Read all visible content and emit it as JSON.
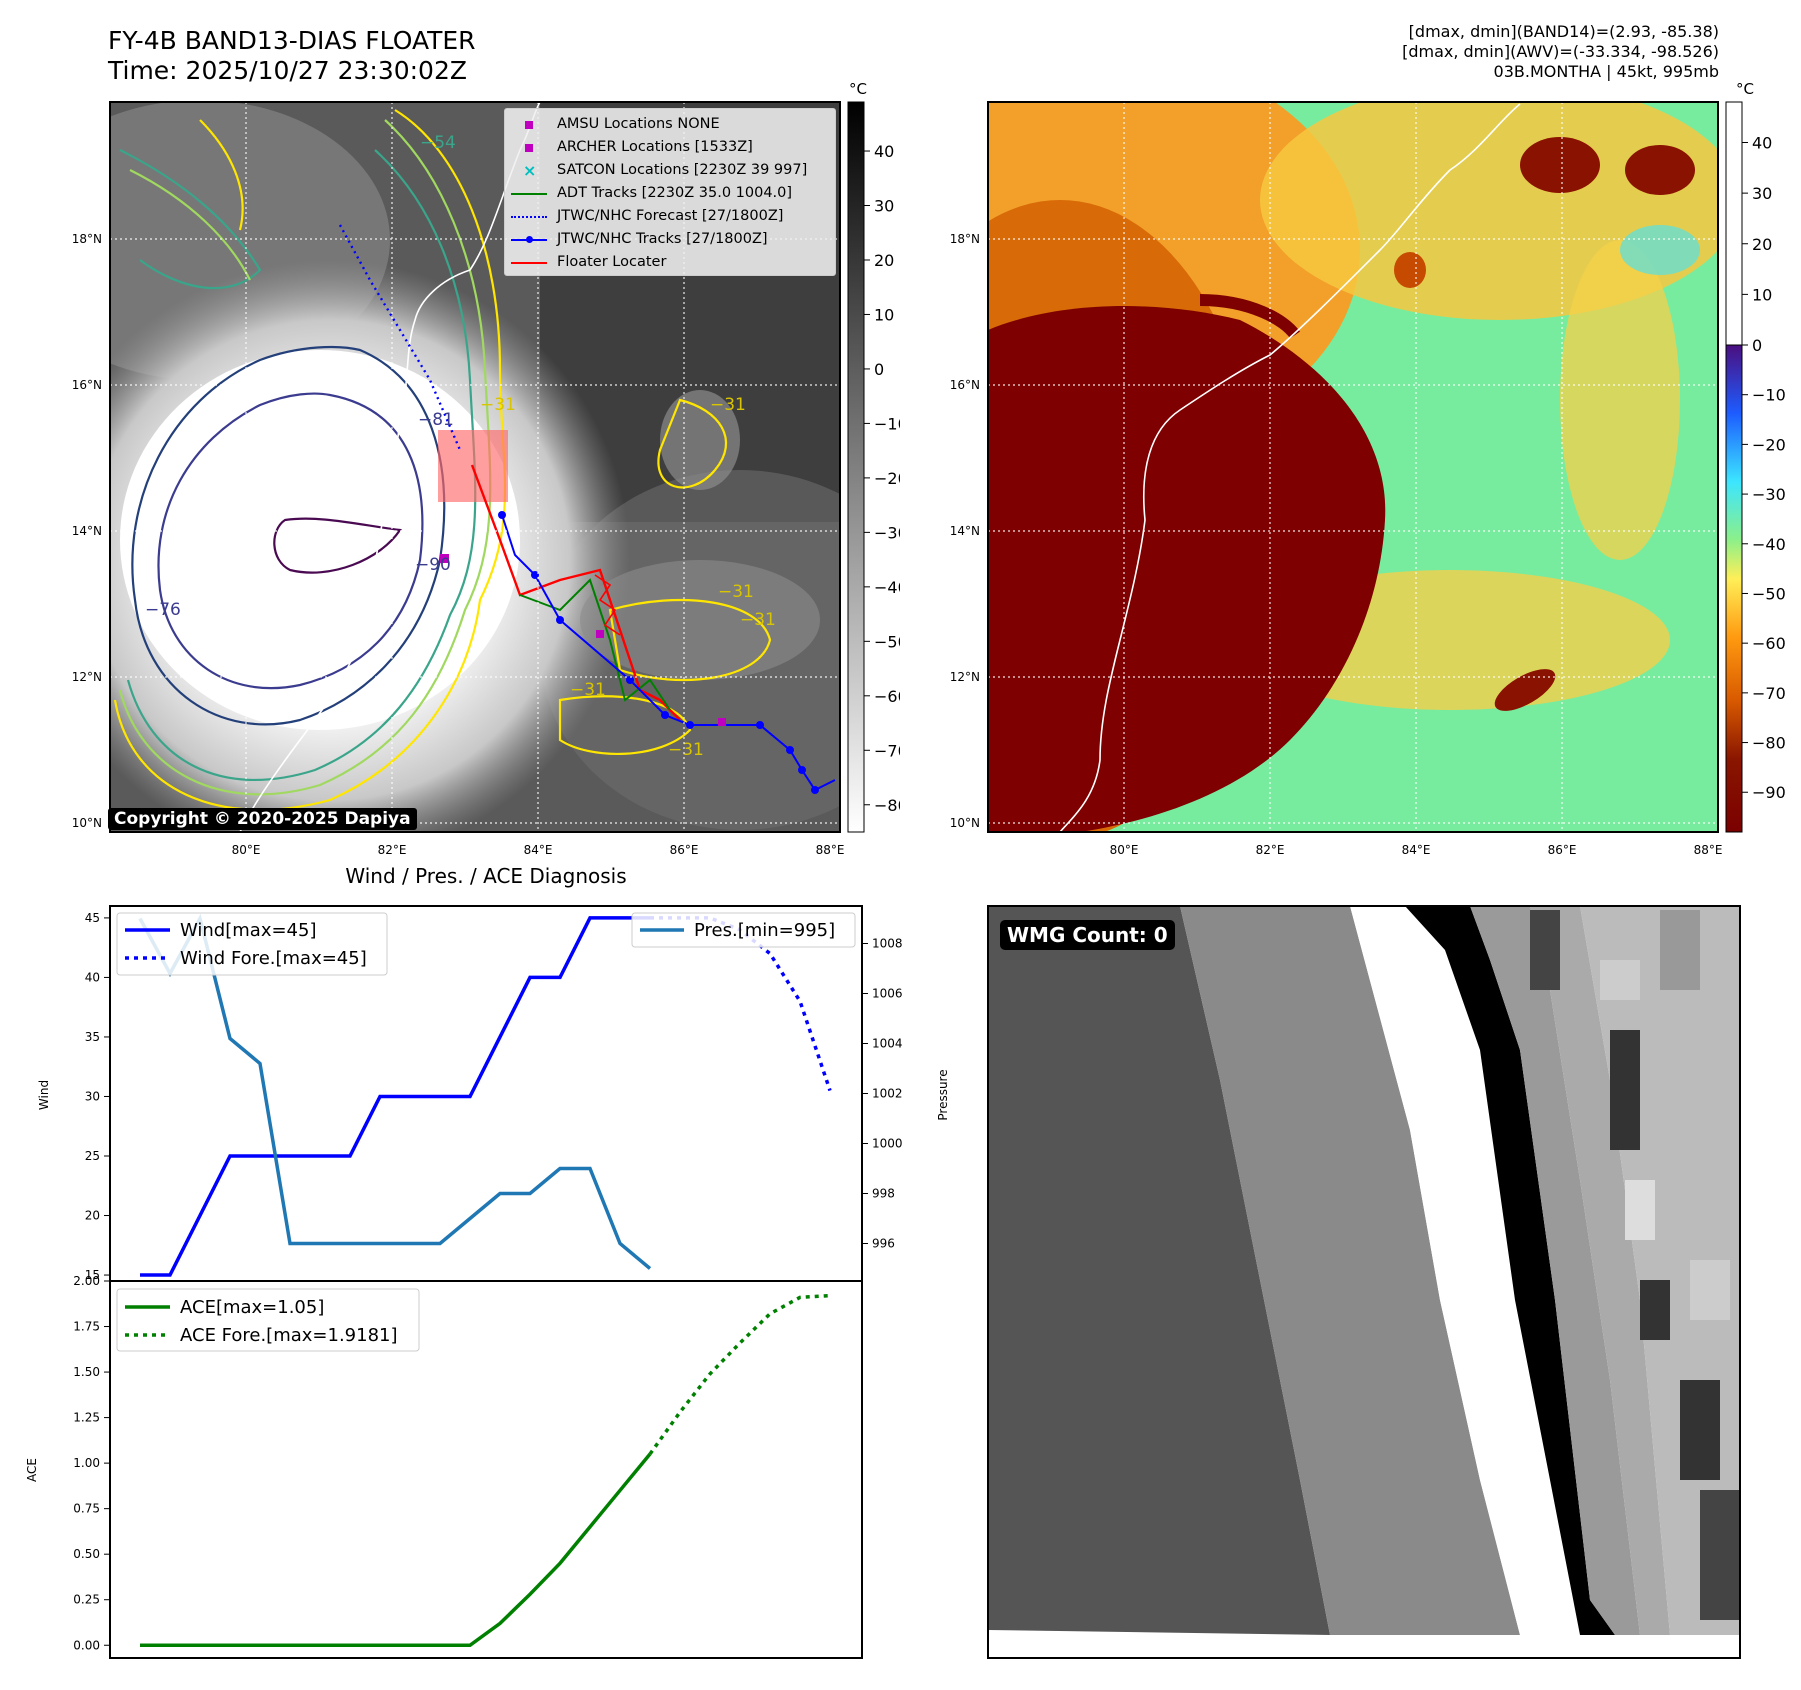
{
  "header": {
    "title_line1": "FY-4B BAND13-DIAS FLOATER",
    "title_line2": "Time: 2025/10/27 23:30:02Z",
    "info_line1": "[dmax, dmin](BAND14)=(2.93, -85.38)",
    "info_line2": "[dmax, dmin](AWV)=(-33.334, -98.526)",
    "info_line3": "03B.MONTHA | 45kt, 995mb"
  },
  "map_axes": {
    "lat_ticks": [
      "10°N",
      "12°N",
      "14°N",
      "16°N",
      "18°N"
    ],
    "lon_ticks": [
      "80°E",
      "82°E",
      "84°E",
      "86°E",
      "88°E"
    ],
    "copyright": "Copyright © 2020-2025 Dapiya"
  },
  "ir_colorbar": {
    "unit": "°C",
    "ticks": [
      "40",
      "30",
      "20",
      "10",
      "0",
      "−10",
      "−20",
      "−30",
      "−40",
      "−50",
      "−60",
      "−70",
      "−80"
    ]
  },
  "wv_colorbar": {
    "unit": "°C",
    "ticks": [
      "40",
      "30",
      "20",
      "10",
      "0",
      "−10",
      "−20",
      "−30",
      "−40",
      "−50",
      "−60",
      "−70",
      "−80",
      "−90"
    ]
  },
  "contour_labels": [
    "−54",
    "−31",
    "−81",
    "−90",
    "−76",
    "−31",
    "−31",
    "−31",
    "−31",
    "−31"
  ],
  "legend_map": [
    {
      "label": "AMSU Locations NONE",
      "color": "#bf00bf",
      "marker": "square"
    },
    {
      "label": "ARCHER Locations [1533Z]",
      "color": "#bf00bf",
      "marker": "square"
    },
    {
      "label": "SATCON Locations [2230Z 39 997]",
      "color": "#00bfbf",
      "marker": "x"
    },
    {
      "label": "ADT Tracks [2230Z 35.0 1004.0]",
      "color": "#008000",
      "marker": "line"
    },
    {
      "label": "JTWC/NHC Forecast [27/1800Z]",
      "color": "#0000ff",
      "marker": "dotted"
    },
    {
      "label": "JTWC/NHC Tracks [27/1800Z]",
      "color": "#0000ff",
      "marker": "line-dot"
    },
    {
      "label": "Floater Locater",
      "color": "#ff0000",
      "marker": "line"
    }
  ],
  "diag_title": "Wind / Pres. / ACE Diagnosis",
  "chart_data": [
    {
      "type": "line",
      "title": "Wind / Pres. / ACE Diagnosis",
      "ylabel": "Wind",
      "ylabel_right": "Pressure",
      "ylim": [
        14.5,
        46
      ],
      "ylim_right": [
        994.5,
        1009.5
      ],
      "yticks": [
        "45",
        "40",
        "35",
        "30",
        "25",
        "20",
        "15"
      ],
      "yticks_right": [
        "1008",
        "1006",
        "1004",
        "1002",
        "1000",
        "998",
        "996"
      ],
      "series": [
        {
          "name": "Wind[max=45]",
          "color": "#0000ff",
          "style": "solid",
          "x": [
            0,
            1,
            2,
            3,
            4,
            5,
            6,
            7,
            8,
            9,
            10,
            11,
            12,
            13,
            14,
            15,
            16,
            17
          ],
          "values": [
            15,
            15,
            20,
            25,
            25,
            25,
            25,
            25,
            30,
            30,
            30,
            30,
            35,
            40,
            40,
            45,
            45,
            45
          ]
        },
        {
          "name": "Wind Fore.[max=45]",
          "color": "#0000ff",
          "style": "dotted",
          "x": [
            17,
            18,
            19,
            20,
            21,
            22,
            23
          ],
          "values": [
            45,
            45,
            45,
            44,
            42,
            38,
            30.5
          ]
        },
        {
          "name": "Pres.[min=995]",
          "color": "#1f77b4",
          "style": "solid",
          "axis": "right",
          "x": [
            0,
            1,
            2,
            3,
            4,
            5,
            6,
            7,
            8,
            9,
            10,
            11,
            12,
            13,
            14,
            15,
            16,
            17
          ],
          "values": [
            1009,
            1006.8,
            1009,
            1004.2,
            1003.2,
            996,
            996,
            996,
            996,
            996,
            996,
            997,
            998,
            998,
            999,
            999,
            996,
            995
          ]
        }
      ]
    },
    {
      "type": "line",
      "ylabel": "ACE",
      "ylim": [
        -0.07,
        2.0
      ],
      "yticks": [
        "2.00",
        "1.75",
        "1.50",
        "1.25",
        "1.00",
        "0.75",
        "0.50",
        "0.25",
        "0.00"
      ],
      "series": [
        {
          "name": "ACE[max=1.05]",
          "color": "#008000",
          "style": "solid",
          "x": [
            0,
            1,
            2,
            3,
            4,
            5,
            6,
            7,
            8,
            9,
            10,
            11,
            12,
            13,
            14,
            15,
            16,
            17
          ],
          "values": [
            0,
            0,
            0,
            0,
            0,
            0,
            0,
            0,
            0,
            0,
            0,
            0,
            0.12,
            0.28,
            0.45,
            0.65,
            0.85,
            1.05
          ]
        },
        {
          "name": "ACE Fore.[max=1.9181]",
          "color": "#008000",
          "style": "dotted",
          "x": [
            17,
            18,
            19,
            20,
            21,
            22,
            23
          ],
          "values": [
            1.05,
            1.28,
            1.49,
            1.66,
            1.82,
            1.91,
            1.92
          ]
        }
      ]
    }
  ],
  "wmg": {
    "label": "WMG Count: 0"
  }
}
